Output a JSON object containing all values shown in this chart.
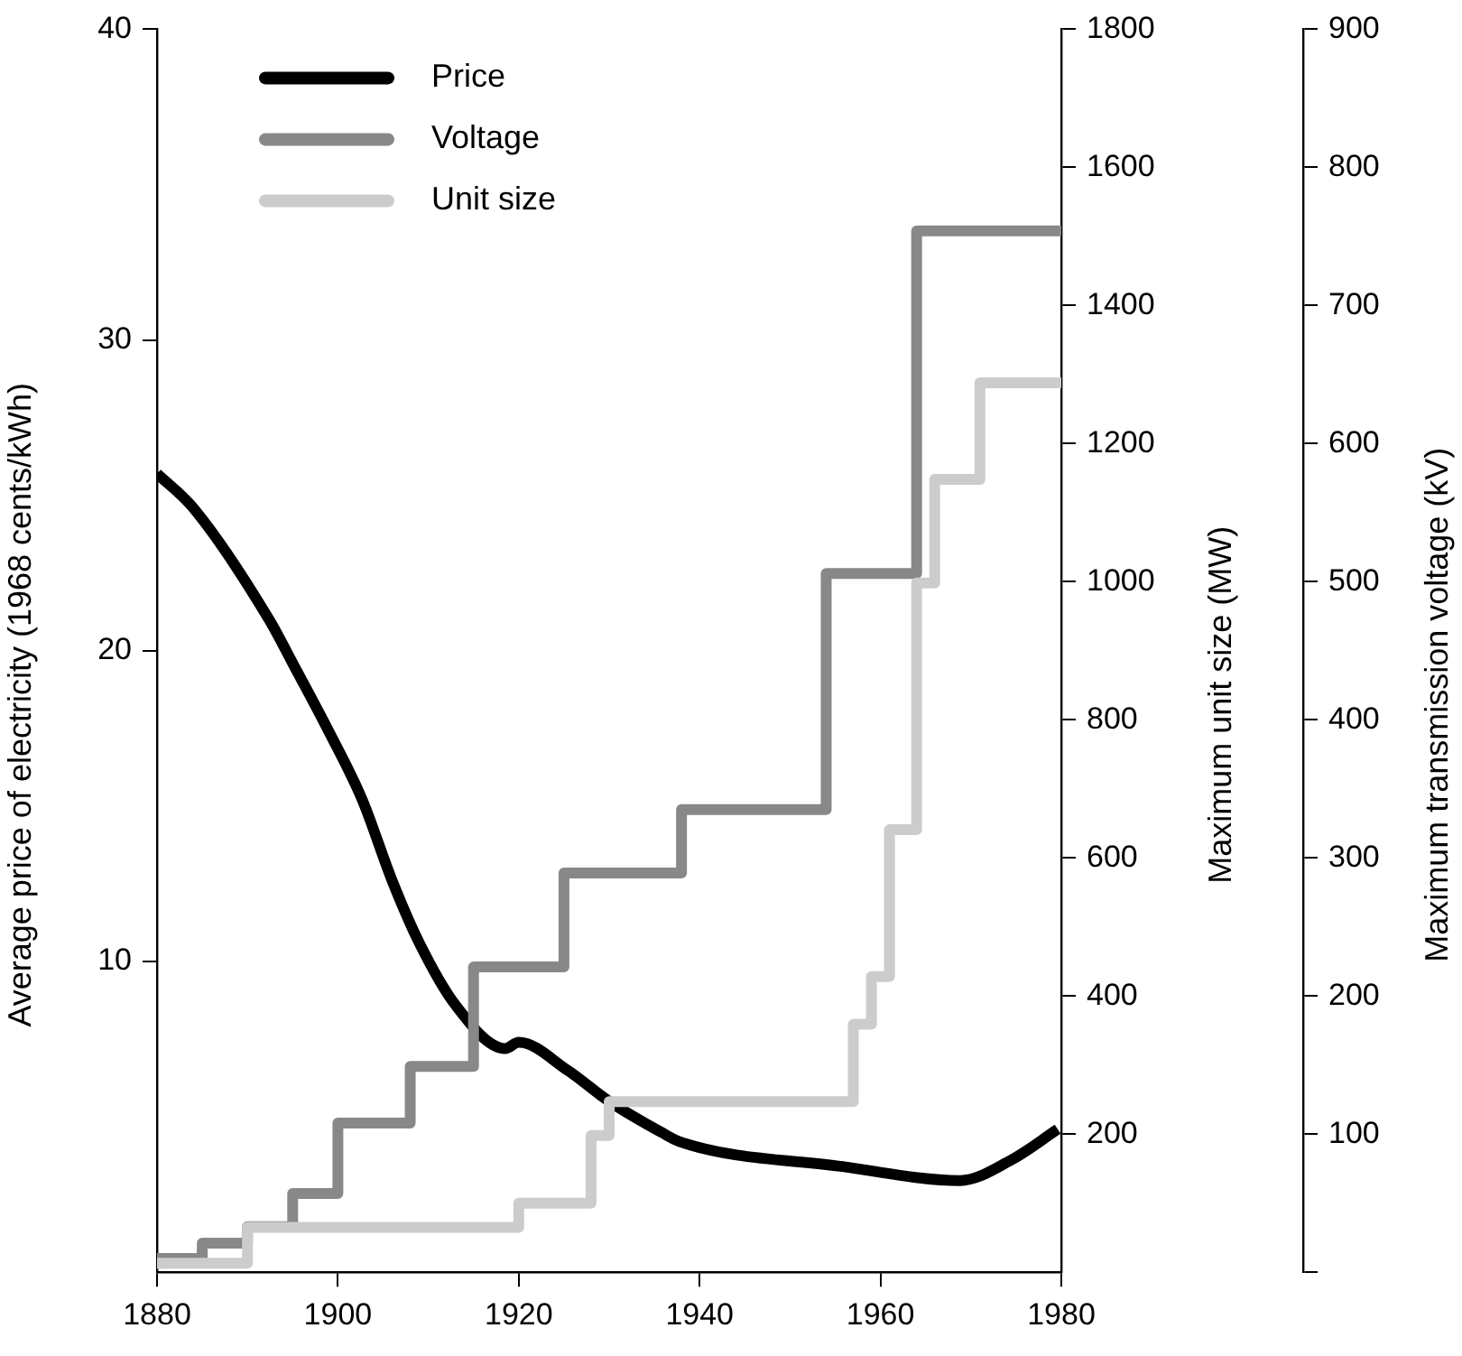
{
  "chart_data": {
    "type": "line",
    "ylabel": "Average price of electricity (1968 cents/kWh)",
    "y2label": "Maximum unit size (MW)",
    "y3label": "Maximum transmission voltage (kV)",
    "xlim": [
      1880,
      1980
    ],
    "xticks": [
      1880,
      1900,
      1920,
      1940,
      1960,
      1980
    ],
    "ylim": [
      0,
      40
    ],
    "yticks": [
      10,
      20,
      30,
      40
    ],
    "y2lim": [
      0,
      1800
    ],
    "y2ticks": [
      200,
      400,
      600,
      800,
      1000,
      1200,
      1400,
      1600,
      1800
    ],
    "y3lim": [
      0,
      900
    ],
    "y3ticks": [
      {
        "value": 0,
        "label": null
      },
      100,
      200,
      300,
      400,
      500,
      600,
      700,
      800,
      900
    ],
    "legend": "top left",
    "grid": false,
    "series": [
      {
        "name": "Price",
        "color": "#000000",
        "axis": "y",
        "x": [
          1880,
          1884,
          1892.4,
          1895,
          1899,
          1902.7,
          1906,
          1909,
          1913,
          1918.5,
          1920,
          1925.4,
          1930,
          1935.8,
          1937.8,
          1955.8,
          1968.8,
          1974.4,
          1979.6
        ],
        "values": [
          25.7,
          24.6,
          21.0,
          19.6,
          17.4,
          15.2,
          12.6,
          10.6,
          8.6,
          7.2,
          7.4,
          6.5,
          5.5,
          4.5,
          4.2,
          3.4,
          2.95,
          3.6,
          4.6
        ]
      },
      {
        "name": "Voltage",
        "color": "#888888",
        "type": "step",
        "axis": "y3",
        "x": [
          1880,
          1885,
          1890,
          1895,
          1900,
          1908,
          1915,
          1925,
          1938,
          1954,
          1964,
          1969,
          1980
        ],
        "values": [
          3,
          10,
          21,
          33,
          57,
          108,
          149,
          221,
          289,
          335,
          506,
          754,
          754
        ]
      },
      {
        "name": "Unit size",
        "color": "#cccccc",
        "type": "step",
        "axis": "y2",
        "x": [
          1880,
          1890,
          1920,
          1928,
          1930,
          1957,
          1959,
          1961,
          1964,
          1966,
          1971,
          1974,
          1980
        ],
        "values": [
          5,
          13,
          65,
          100,
          198,
          247,
          359,
          428,
          641,
          998,
          1148,
          1288,
          1288
        ]
      }
    ]
  }
}
